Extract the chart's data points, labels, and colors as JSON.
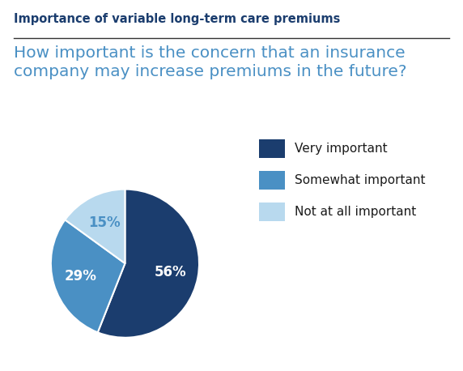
{
  "title": "Importance of variable long-term care premiums",
  "question": "How important is the concern that an insurance\ncompany may increase premiums in the future?",
  "slices": [
    56,
    29,
    15
  ],
  "labels": [
    "56%",
    "29%",
    "15%"
  ],
  "label_colors": [
    "white",
    "white",
    "#4a90c4"
  ],
  "colors": [
    "#1b3d6e",
    "#4a90c4",
    "#b8d9ee"
  ],
  "legend_labels": [
    "Very important",
    "Somewhat important",
    "Not at all important"
  ],
  "title_color": "#1b3d6e",
  "question_color": "#4a90c4",
  "background_color": "#ffffff",
  "title_fontsize": 10.5,
  "question_fontsize": 14.5,
  "legend_fontsize": 11,
  "label_fontsize": 12
}
